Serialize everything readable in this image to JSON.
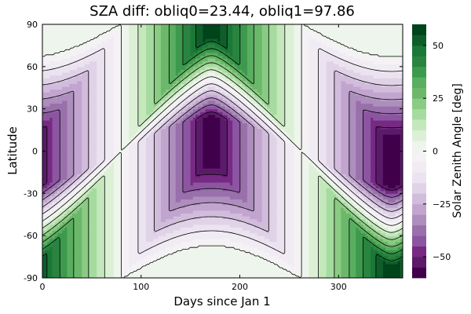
{
  "chart_data": {
    "type": "heatmap",
    "title": "SZA diff: obliq0=23.44, obliq1=97.86",
    "xlabel": "Days since Jan 1",
    "ylabel": "Latitude",
    "xlim": [
      0,
      365
    ],
    "ylim": [
      -90,
      90
    ],
    "x_ticks": [
      0,
      100,
      200,
      300
    ],
    "y_ticks": [
      -90,
      -60,
      -30,
      0,
      30,
      60,
      90
    ],
    "colorbar": {
      "label": "Solar Zenith Angle [deg]",
      "range": [
        -60,
        60
      ],
      "ticks": [
        50,
        25,
        0,
        -25,
        -50
      ],
      "tick_labels": [
        "50",
        "25",
        "0",
        "−25",
        "−50"
      ],
      "levels": [
        -60,
        -55,
        -50,
        -45,
        -40,
        -35,
        -30,
        -25,
        -20,
        -15,
        -10,
        -5,
        0,
        5,
        10,
        15,
        20,
        25,
        30,
        35,
        40,
        45,
        50,
        55,
        60
      ],
      "colors": [
        "#40004b",
        "#5c1a6b",
        "#762a83",
        "#8c55a1",
        "#9970ab",
        "#ad8ebd",
        "#c2a5cf",
        "#d2bcdc",
        "#e0d3e8",
        "#ebe3f0",
        "#f1ecf4",
        "#f4f2f4",
        "#eef5ec",
        "#dcf0d6",
        "#c4e8bc",
        "#a6dba0",
        "#8bcb84",
        "#6cb86a",
        "#5aae61",
        "#3d9a4d",
        "#2a8440",
        "#1b7837",
        "#0f5e2a",
        "#00441b"
      ]
    },
    "colormap": "PRGn",
    "grid": false
  }
}
